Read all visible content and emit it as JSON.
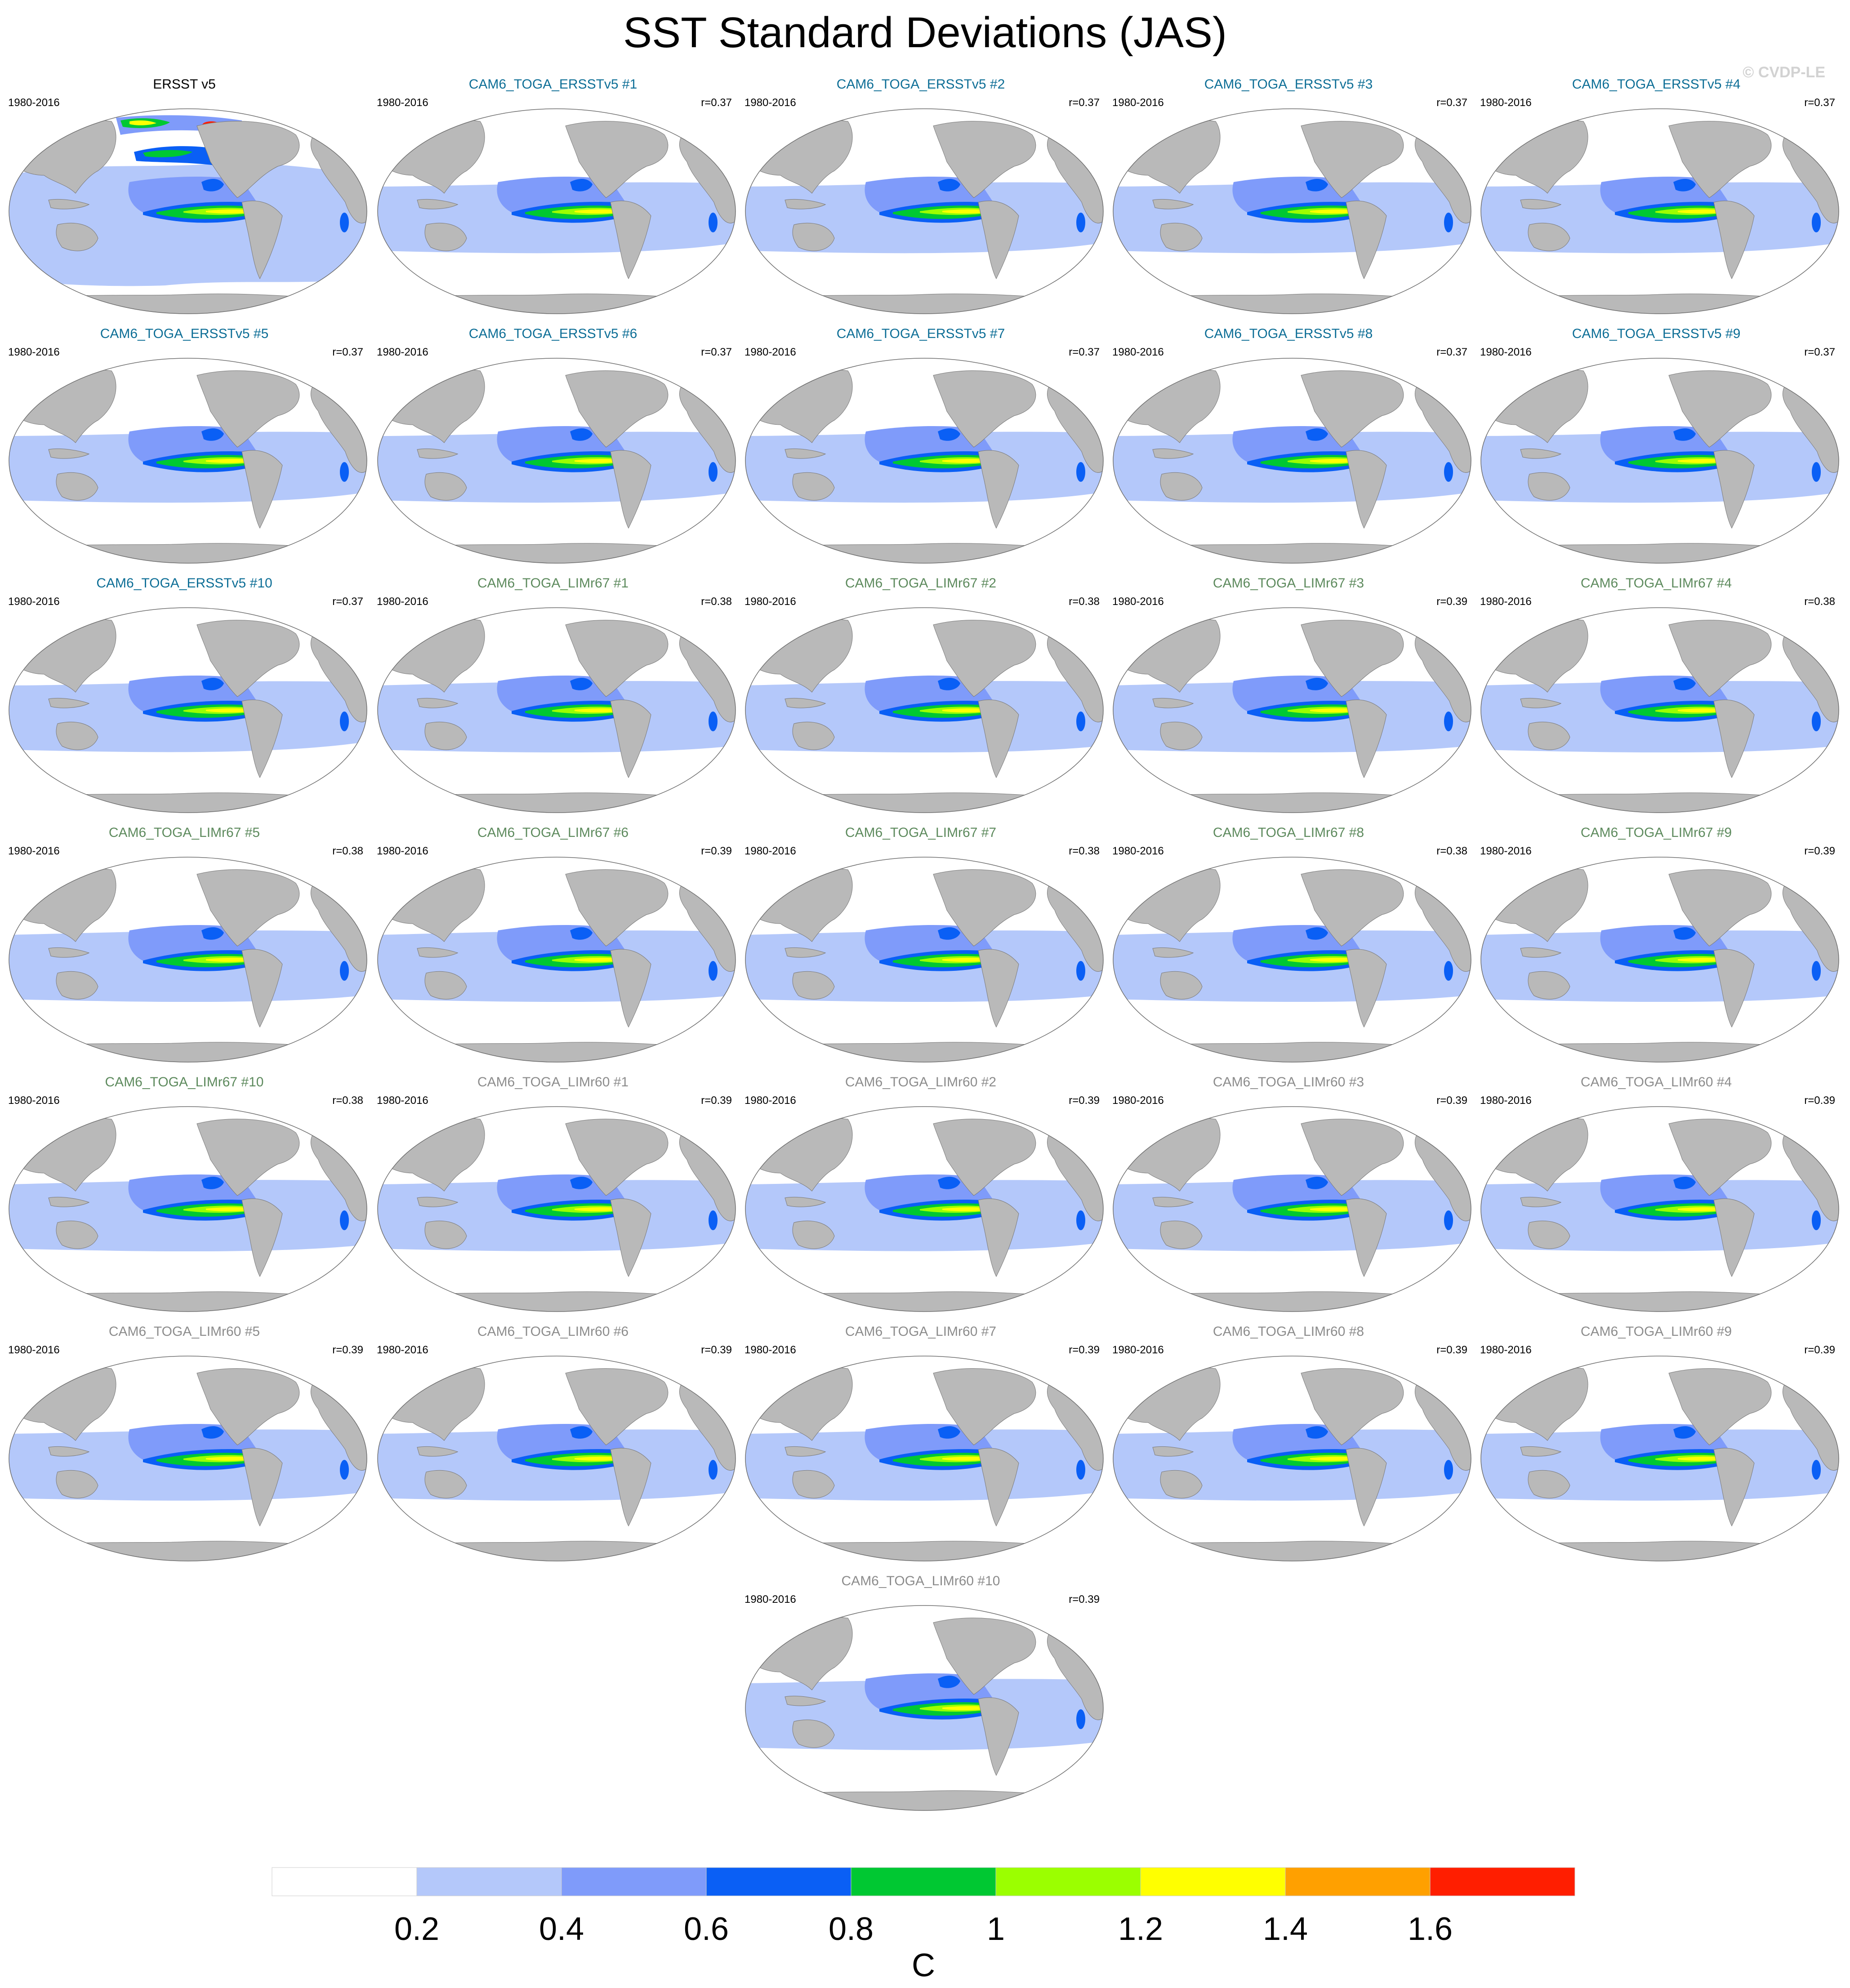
{
  "title": "SST Standard Deviations (JAS)",
  "credit": "© CVDP-LE",
  "colors": {
    "land": "#b9b9b9",
    "title_obs": "#000000",
    "title_ersst": "#0d6e96",
    "title_limr67": "#5d8a5d",
    "title_limr60": "#8c8c8c"
  },
  "panels": [
    {
      "title": "ERSST v5",
      "period": "1980-2016",
      "corr": "",
      "group": "obs"
    },
    {
      "title": "CAM6_TOGA_ERSSTv5 #1",
      "period": "1980-2016",
      "corr": "r=0.37",
      "group": "ersst"
    },
    {
      "title": "CAM6_TOGA_ERSSTv5 #2",
      "period": "1980-2016",
      "corr": "r=0.37",
      "group": "ersst"
    },
    {
      "title": "CAM6_TOGA_ERSSTv5 #3",
      "period": "1980-2016",
      "corr": "r=0.37",
      "group": "ersst"
    },
    {
      "title": "CAM6_TOGA_ERSSTv5 #4",
      "period": "1980-2016",
      "corr": "r=0.37",
      "group": "ersst"
    },
    {
      "title": "CAM6_TOGA_ERSSTv5 #5",
      "period": "1980-2016",
      "corr": "r=0.37",
      "group": "ersst"
    },
    {
      "title": "CAM6_TOGA_ERSSTv5 #6",
      "period": "1980-2016",
      "corr": "r=0.37",
      "group": "ersst"
    },
    {
      "title": "CAM6_TOGA_ERSSTv5 #7",
      "period": "1980-2016",
      "corr": "r=0.37",
      "group": "ersst"
    },
    {
      "title": "CAM6_TOGA_ERSSTv5 #8",
      "period": "1980-2016",
      "corr": "r=0.37",
      "group": "ersst"
    },
    {
      "title": "CAM6_TOGA_ERSSTv5 #9",
      "period": "1980-2016",
      "corr": "r=0.37",
      "group": "ersst"
    },
    {
      "title": "CAM6_TOGA_ERSSTv5 #10",
      "period": "1980-2016",
      "corr": "r=0.37",
      "group": "ersst"
    },
    {
      "title": "CAM6_TOGA_LIMr67 #1",
      "period": "1980-2016",
      "corr": "r=0.38",
      "group": "limr67"
    },
    {
      "title": "CAM6_TOGA_LIMr67 #2",
      "period": "1980-2016",
      "corr": "r=0.38",
      "group": "limr67"
    },
    {
      "title": "CAM6_TOGA_LIMr67 #3",
      "period": "1980-2016",
      "corr": "r=0.39",
      "group": "limr67"
    },
    {
      "title": "CAM6_TOGA_LIMr67 #4",
      "period": "1980-2016",
      "corr": "r=0.38",
      "group": "limr67"
    },
    {
      "title": "CAM6_TOGA_LIMr67 #5",
      "period": "1980-2016",
      "corr": "r=0.38",
      "group": "limr67"
    },
    {
      "title": "CAM6_TOGA_LIMr67 #6",
      "period": "1980-2016",
      "corr": "r=0.39",
      "group": "limr67"
    },
    {
      "title": "CAM6_TOGA_LIMr67 #7",
      "period": "1980-2016",
      "corr": "r=0.38",
      "group": "limr67"
    },
    {
      "title": "CAM6_TOGA_LIMr67 #8",
      "period": "1980-2016",
      "corr": "r=0.38",
      "group": "limr67"
    },
    {
      "title": "CAM6_TOGA_LIMr67 #9",
      "period": "1980-2016",
      "corr": "r=0.39",
      "group": "limr67"
    },
    {
      "title": "CAM6_TOGA_LIMr67 #10",
      "period": "1980-2016",
      "corr": "r=0.38",
      "group": "limr67"
    },
    {
      "title": "CAM6_TOGA_LIMr60 #1",
      "period": "1980-2016",
      "corr": "r=0.39",
      "group": "limr60"
    },
    {
      "title": "CAM6_TOGA_LIMr60 #2",
      "period": "1980-2016",
      "corr": "r=0.39",
      "group": "limr60"
    },
    {
      "title": "CAM6_TOGA_LIMr60 #3",
      "period": "1980-2016",
      "corr": "r=0.39",
      "group": "limr60"
    },
    {
      "title": "CAM6_TOGA_LIMr60 #4",
      "period": "1980-2016",
      "corr": "r=0.39",
      "group": "limr60"
    },
    {
      "title": "CAM6_TOGA_LIMr60 #5",
      "period": "1980-2016",
      "corr": "r=0.39",
      "group": "limr60"
    },
    {
      "title": "CAM6_TOGA_LIMr60 #6",
      "period": "1980-2016",
      "corr": "r=0.39",
      "group": "limr60"
    },
    {
      "title": "CAM6_TOGA_LIMr60 #7",
      "period": "1980-2016",
      "corr": "r=0.39",
      "group": "limr60"
    },
    {
      "title": "CAM6_TOGA_LIMr60 #8",
      "period": "1980-2016",
      "corr": "r=0.39",
      "group": "limr60"
    },
    {
      "title": "CAM6_TOGA_LIMr60 #9",
      "period": "1980-2016",
      "corr": "r=0.39",
      "group": "limr60"
    },
    {
      "title": "CAM6_TOGA_LIMr60 #10",
      "period": "1980-2016",
      "corr": "r=0.39",
      "group": "limr60"
    }
  ],
  "colorbar": {
    "labels": [
      "0.2",
      "0.4",
      "0.6",
      "0.8",
      "1",
      "1.2",
      "1.4",
      "1.6"
    ],
    "colors": [
      "#ffffff",
      "#b4c8fa",
      "#7f9bfa",
      "#0a5ff5",
      "#00c832",
      "#9bff00",
      "#ffff00",
      "#ffa000",
      "#ff1e00"
    ],
    "unit": "C"
  }
}
